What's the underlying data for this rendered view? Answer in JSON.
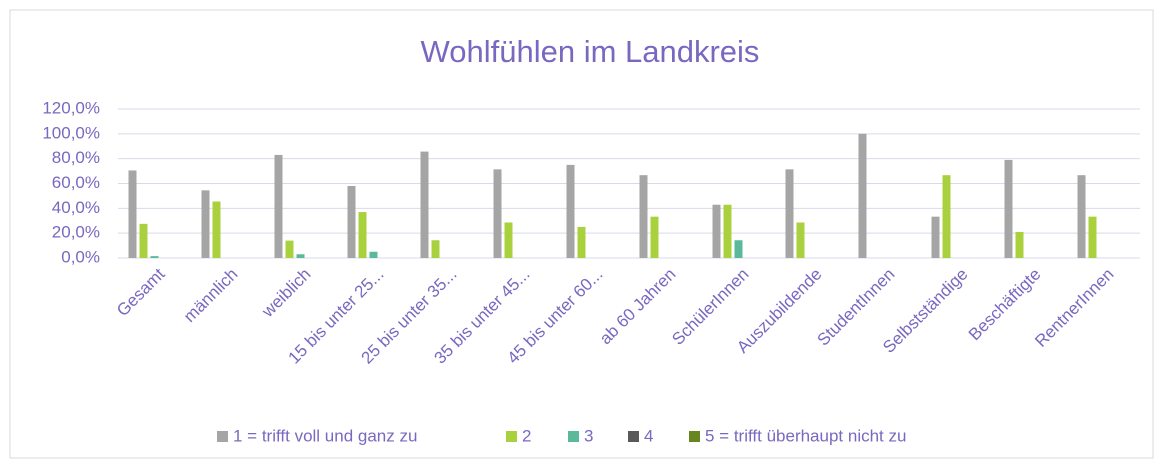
{
  "chart_data": {
    "type": "bar",
    "title": "Wohlfühlen im Landkreis",
    "categories": [
      "Gesamt",
      "männlich",
      "weiblich",
      "15 bis unter 25...",
      "25 bis unter 35...",
      "35 bis unter 45...",
      "45 bis unter 60...",
      "ab 60 Jahren",
      "SchülerInnen",
      "Auszubildende",
      "StudentInnen",
      "Selbstständige",
      "Beschäftigte",
      "RentnerInnen"
    ],
    "series": [
      {
        "name": "1 = trifft voll und ganz zu",
        "color": "#a5a5a5",
        "values": [
          70.5,
          54.5,
          83,
          58,
          85.7,
          71.4,
          75,
          66.7,
          42.9,
          71.4,
          100,
          33.3,
          79,
          66.7
        ]
      },
      {
        "name": "2",
        "color": "#a9d13d",
        "values": [
          27.5,
          45.5,
          14,
          37,
          14.3,
          28.6,
          25,
          33.3,
          42.9,
          28.6,
          0,
          66.7,
          21,
          33.3
        ]
      },
      {
        "name": "3",
        "color": "#5cb89a",
        "values": [
          1.5,
          0,
          3,
          5,
          0,
          0,
          0,
          0,
          14.3,
          0,
          0,
          0,
          0,
          0
        ]
      },
      {
        "name": "4",
        "color": "#595959",
        "values": [
          0,
          0,
          0,
          0,
          0,
          0,
          0,
          0,
          0,
          0,
          0,
          0,
          0,
          0
        ]
      },
      {
        "name": "5 = trifft überhaupt nicht zu",
        "color": "#68861f",
        "values": [
          0,
          0,
          0,
          0,
          0,
          0,
          0,
          0,
          0,
          0,
          0,
          0,
          0,
          0
        ]
      }
    ],
    "ylim": [
      0,
      120
    ],
    "yticks": [
      {
        "value": 0,
        "label": "0,0%"
      },
      {
        "value": 20,
        "label": "20,0%"
      },
      {
        "value": 40,
        "label": "40,0%"
      },
      {
        "value": 60,
        "label": "60,0%"
      },
      {
        "value": 80,
        "label": "80,0%"
      },
      {
        "value": 100,
        "label": "100,0%"
      },
      {
        "value": 120,
        "label": "120,0%"
      }
    ],
    "grid": true,
    "legend": "bottom"
  }
}
